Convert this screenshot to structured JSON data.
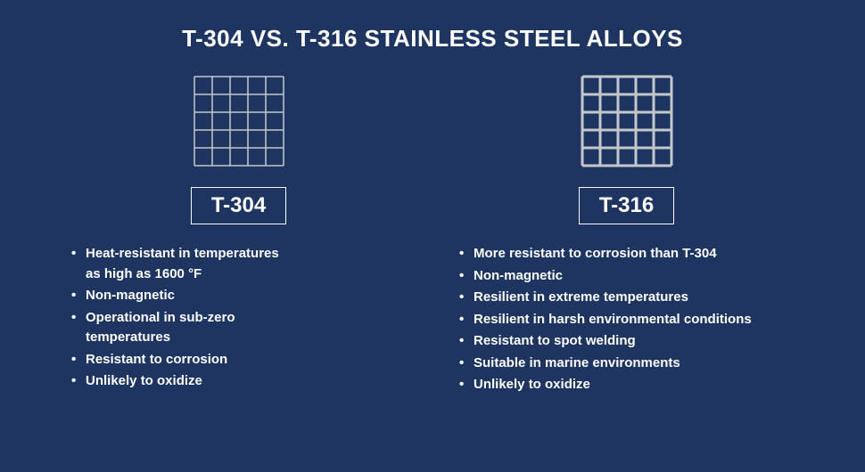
{
  "background_color": "#1d3560",
  "text_color": "#ffffff",
  "grid_line_color": "#c4c8cc",
  "title": {
    "text": "T-304 VS. T-316 STAINLESS STEEL ALLOYS",
    "font_size": 26
  },
  "label_box": {
    "border_color": "#ffffff",
    "border_width": 1,
    "font_size": 24
  },
  "bullet_font_size": 15,
  "left": {
    "grid": {
      "cells": 5,
      "cell_size": 20,
      "stroke_width": 1.5,
      "style": "thin"
    },
    "label": "T-304",
    "bullets": [
      "Heat-resistant in temperatures\nas high as 1600 °F",
      "Non-magnetic",
      "Operational in sub-zero\ntemperatures",
      "Resistant to corrosion",
      "Unlikely to oxidize"
    ]
  },
  "right": {
    "grid": {
      "cells": 5,
      "cell_size": 20,
      "stroke_width": 3,
      "style": "thick"
    },
    "label": "T-316",
    "bullets": [
      "More resistant to corrosion than T-304",
      "Non-magnetic",
      "Resilient in extreme temperatures",
      "Resilient in harsh environmental conditions",
      "Resistant to spot welding",
      "Suitable in marine environments",
      "Unlikely to oxidize"
    ]
  }
}
